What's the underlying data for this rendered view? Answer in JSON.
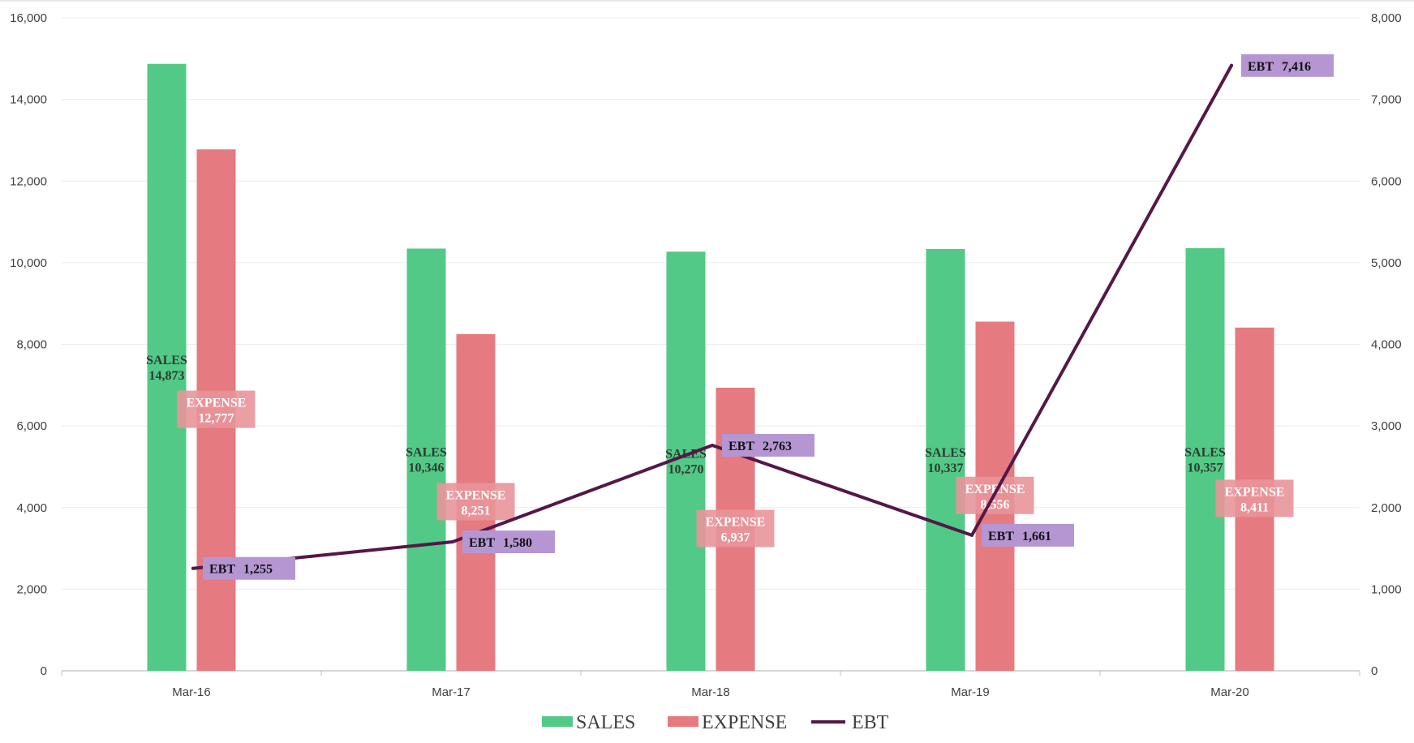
{
  "chart_data": {
    "type": "bar",
    "categories": [
      "Mar-16",
      "Mar-17",
      "Mar-18",
      "Mar-19",
      "Mar-20"
    ],
    "series": [
      {
        "name": "SALES",
        "kind": "bar",
        "axis": "left",
        "color": "#52c986",
        "values": [
          14873,
          10346,
          10270,
          10337,
          10357
        ]
      },
      {
        "name": "EXPENSE",
        "kind": "bar",
        "axis": "left",
        "color": "#e57a80",
        "values": [
          12777,
          8251,
          6937,
          8556,
          8411
        ]
      },
      {
        "name": "EBT",
        "kind": "line",
        "axis": "right",
        "color": "#541848",
        "values": [
          1255,
          1580,
          2763,
          1661,
          7416
        ]
      }
    ],
    "y_left": {
      "min": 0,
      "max": 16000,
      "step": 2000
    },
    "y_right": {
      "min": 0,
      "max": 8000,
      "step": 1000
    },
    "data_label_colors": {
      "EXPENSE": "#e8959a",
      "EBT": "#b596d2"
    },
    "legend": {
      "position": "bottom",
      "entries": [
        "SALES",
        "EXPENSE",
        "EBT"
      ]
    },
    "grid": true
  }
}
